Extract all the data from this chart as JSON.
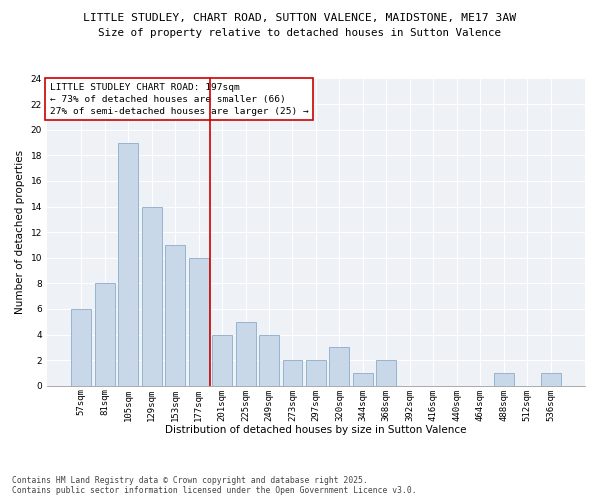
{
  "title_line1": "LITTLE STUDLEY, CHART ROAD, SUTTON VALENCE, MAIDSTONE, ME17 3AW",
  "title_line2": "Size of property relative to detached houses in Sutton Valence",
  "xlabel": "Distribution of detached houses by size in Sutton Valence",
  "ylabel": "Number of detached properties",
  "categories": [
    "57sqm",
    "81sqm",
    "105sqm",
    "129sqm",
    "153sqm",
    "177sqm",
    "201sqm",
    "225sqm",
    "249sqm",
    "273sqm",
    "297sqm",
    "320sqm",
    "344sqm",
    "368sqm",
    "392sqm",
    "416sqm",
    "440sqm",
    "464sqm",
    "488sqm",
    "512sqm",
    "536sqm"
  ],
  "values": [
    6,
    8,
    19,
    14,
    11,
    10,
    4,
    5,
    4,
    2,
    2,
    3,
    1,
    2,
    0,
    0,
    0,
    0,
    1,
    0,
    1
  ],
  "bar_color": "#c8d8e8",
  "bar_edgecolor": "#8aabca",
  "vline_bar_index": 6,
  "vline_color": "#cc0000",
  "annotation_title": "LITTLE STUDLEY CHART ROAD: 197sqm",
  "annotation_line2": "← 73% of detached houses are smaller (66)",
  "annotation_line3": "27% of semi-detached houses are larger (25) →",
  "annotation_box_color": "#cc0000",
  "ylim": [
    0,
    24
  ],
  "yticks": [
    0,
    2,
    4,
    6,
    8,
    10,
    12,
    14,
    16,
    18,
    20,
    22,
    24
  ],
  "plot_bg_color": "#eef2f7",
  "footnote": "Contains HM Land Registry data © Crown copyright and database right 2025.\nContains public sector information licensed under the Open Government Licence v3.0.",
  "title_fontsize": 8.2,
  "subtitle_fontsize": 7.8,
  "axis_label_fontsize": 7.5,
  "tick_fontsize": 6.5,
  "annotation_fontsize": 6.8,
  "footnote_fontsize": 5.8
}
